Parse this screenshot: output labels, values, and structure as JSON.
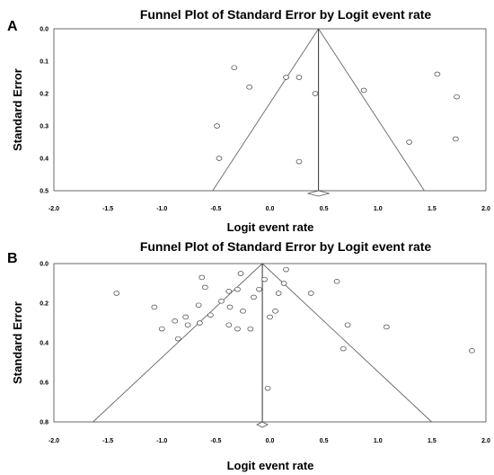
{
  "chart_data": [
    {
      "type": "scatter",
      "panel": "A",
      "title": "Funnel Plot of Standard Error by Logit event rate",
      "xlabel": "Logit event rate",
      "ylabel": "Standard Error",
      "xlim": [
        -2.0,
        2.0
      ],
      "ylim": [
        0.0,
        0.5
      ],
      "y_inverted": true,
      "xticks": [
        "-2.0",
        "-1.5",
        "-1.0",
        "-0.5",
        "0.0",
        "0.5",
        "1.0",
        "1.5",
        "2.0"
      ],
      "yticks": [
        "0.0",
        "0.1",
        "0.2",
        "0.3",
        "0.4",
        "0.5"
      ],
      "summary_estimate": 0.45,
      "points": [
        {
          "x": -0.33,
          "y": 0.12
        },
        {
          "x": -0.19,
          "y": 0.18
        },
        {
          "x": 0.15,
          "y": 0.15
        },
        {
          "x": 0.27,
          "y": 0.15
        },
        {
          "x": 0.42,
          "y": 0.2
        },
        {
          "x": 0.87,
          "y": 0.19
        },
        {
          "x": 1.55,
          "y": 0.14
        },
        {
          "x": 1.73,
          "y": 0.21
        },
        {
          "x": -0.49,
          "y": 0.3
        },
        {
          "x": 1.29,
          "y": 0.35
        },
        {
          "x": 1.72,
          "y": 0.34
        },
        {
          "x": -0.47,
          "y": 0.4
        },
        {
          "x": 0.27,
          "y": 0.41
        }
      ]
    },
    {
      "type": "scatter",
      "panel": "B",
      "title": "Funnel Plot of Standard Error by Logit event rate",
      "xlabel": "Logit event rate",
      "ylabel": "Standard Error",
      "xlim": [
        -2.0,
        2.0
      ],
      "ylim": [
        0.0,
        0.8
      ],
      "y_inverted": true,
      "xticks": [
        "-2.0",
        "-1.5",
        "-1.0",
        "-0.5",
        "0.0",
        "0.5",
        "1.0",
        "1.5",
        "2.0"
      ],
      "yticks": [
        "0.0",
        "0.2",
        "0.4",
        "0.6",
        "0.8"
      ],
      "summary_estimate": -0.07,
      "points": [
        {
          "x": -1.42,
          "y": 0.15
        },
        {
          "x": -1.07,
          "y": 0.22
        },
        {
          "x": -1.0,
          "y": 0.33
        },
        {
          "x": -0.88,
          "y": 0.29
        },
        {
          "x": -0.85,
          "y": 0.38
        },
        {
          "x": -0.78,
          "y": 0.27
        },
        {
          "x": -0.76,
          "y": 0.31
        },
        {
          "x": -0.66,
          "y": 0.21
        },
        {
          "x": -0.65,
          "y": 0.3
        },
        {
          "x": -0.63,
          "y": 0.07
        },
        {
          "x": -0.6,
          "y": 0.12
        },
        {
          "x": -0.55,
          "y": 0.26
        },
        {
          "x": -0.45,
          "y": 0.19
        },
        {
          "x": -0.38,
          "y": 0.14
        },
        {
          "x": -0.37,
          "y": 0.22
        },
        {
          "x": -0.38,
          "y": 0.31
        },
        {
          "x": -0.3,
          "y": 0.13
        },
        {
          "x": -0.3,
          "y": 0.33
        },
        {
          "x": -0.27,
          "y": 0.05
        },
        {
          "x": -0.25,
          "y": 0.24
        },
        {
          "x": -0.18,
          "y": 0.33
        },
        {
          "x": -0.15,
          "y": 0.17
        },
        {
          "x": -0.1,
          "y": 0.13
        },
        {
          "x": -0.05,
          "y": 0.08
        },
        {
          "x": 0.0,
          "y": 0.27
        },
        {
          "x": 0.05,
          "y": 0.24
        },
        {
          "x": 0.08,
          "y": 0.15
        },
        {
          "x": 0.13,
          "y": 0.1
        },
        {
          "x": 0.15,
          "y": 0.03
        },
        {
          "x": 0.38,
          "y": 0.15
        },
        {
          "x": 0.62,
          "y": 0.09
        },
        {
          "x": 0.72,
          "y": 0.31
        },
        {
          "x": 0.68,
          "y": 0.43
        },
        {
          "x": 1.08,
          "y": 0.32
        },
        {
          "x": 1.87,
          "y": 0.44
        },
        {
          "x": -0.02,
          "y": 0.63
        }
      ]
    }
  ]
}
